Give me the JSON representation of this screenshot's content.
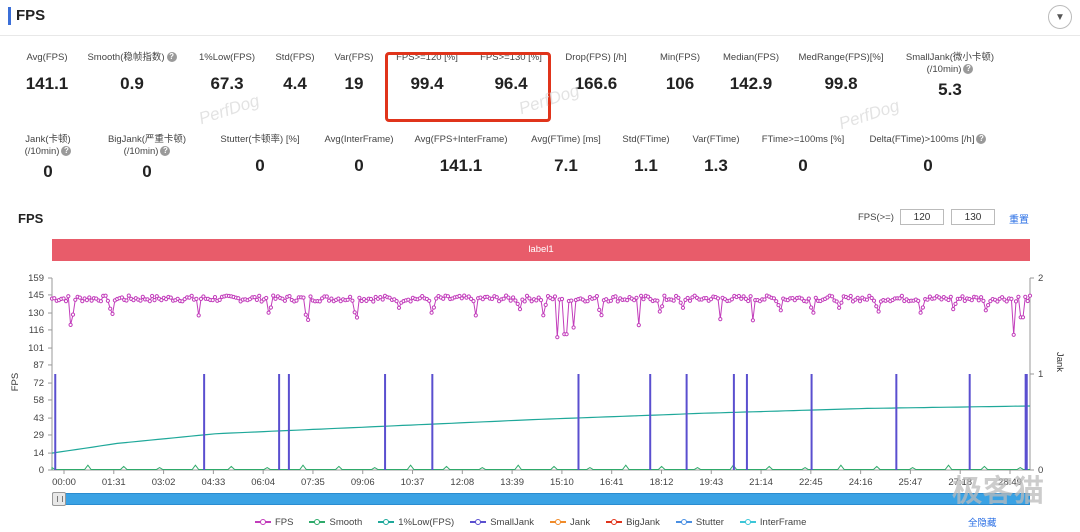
{
  "header": {
    "title": "FPS",
    "collapse_icon": "chevron-down-icon"
  },
  "metrics_row1": [
    {
      "label": "Avg(FPS)",
      "value": "141.1",
      "help": false
    },
    {
      "label": "Smooth(稳帧指数)",
      "value": "0.9",
      "help": true
    },
    {
      "label": "1%Low(FPS)",
      "value": "67.3",
      "help": false
    },
    {
      "label": "Std(FPS)",
      "value": "4.4",
      "help": false
    },
    {
      "label": "Var(FPS)",
      "value": "19",
      "help": false
    },
    {
      "label": "FPS>=120 [%]",
      "value": "99.4",
      "help": false
    },
    {
      "label": "FPS>=130 [%]",
      "value": "96.4",
      "help": false
    },
    {
      "label": "Drop(FPS) [/h]",
      "value": "166.6",
      "help": false
    },
    {
      "label": "Min(FPS)",
      "value": "106",
      "help": false
    },
    {
      "label": "Median(FPS)",
      "value": "142.9",
      "help": false
    },
    {
      "label": "MedRange(FPS)[%]",
      "value": "99.8",
      "help": false
    },
    {
      "label": "SmallJank(微小卡顿)",
      "label2": "(/10min)",
      "value": "5.3",
      "help": true
    }
  ],
  "metrics_row2": [
    {
      "label": "Jank(卡顿)",
      "label2": "(/10min)",
      "value": "0",
      "help": true
    },
    {
      "label": "BigJank(严重卡顿)",
      "label2": "(/10min)",
      "value": "0",
      "help": true
    },
    {
      "label": "Stutter(卡顿率) [%]",
      "value": "0",
      "help": false
    },
    {
      "label": "Avg(InterFrame)",
      "value": "0",
      "help": false
    },
    {
      "label": "Avg(FPS+InterFrame)",
      "value": "141.1",
      "help": false
    },
    {
      "label": "Avg(FTime) [ms]",
      "value": "7.1",
      "help": false
    },
    {
      "label": "Std(FTime)",
      "value": "1.1",
      "help": false
    },
    {
      "label": "Var(FTime)",
      "value": "1.3",
      "help": false
    },
    {
      "label": "FTime>=100ms [%]",
      "value": "0",
      "help": false
    },
    {
      "label": "Delta(FTime)>100ms [/h]",
      "value": "0",
      "help": true
    }
  ],
  "watermark_text": "PerfDog",
  "chart_section": {
    "title": "FPS",
    "fps_threshold_label": "FPS(>=)",
    "threshold1": "120",
    "threshold2": "130",
    "reset_label": "重置",
    "label_bar": "label1"
  },
  "chart_data": {
    "type": "line",
    "x_tick_labels": [
      "00:00",
      "01:31",
      "03:02",
      "04:33",
      "06:04",
      "07:35",
      "09:06",
      "10:37",
      "12:08",
      "13:39",
      "15:10",
      "16:41",
      "18:12",
      "19:43",
      "21:14",
      "22:45",
      "24:16",
      "25:47",
      "27:18",
      "28:49"
    ],
    "x_range_seconds": [
      0,
      1800
    ],
    "ylabel_left": "FPS",
    "ylabel_right": "Jank",
    "y_left_ticks": [
      0,
      14,
      29,
      43,
      58,
      72,
      87,
      101,
      116,
      130,
      145,
      159
    ],
    "y_left_range": [
      0,
      159
    ],
    "y_right_ticks": [
      0,
      1,
      2
    ],
    "y_right_range": [
      0,
      2
    ],
    "fps_base": 142,
    "fps_dips": [
      {
        "t": 35,
        "v": 118
      },
      {
        "t": 110,
        "v": 125
      },
      {
        "t": 270,
        "v": 128
      },
      {
        "t": 400,
        "v": 126
      },
      {
        "t": 470,
        "v": 120
      },
      {
        "t": 560,
        "v": 122
      },
      {
        "t": 640,
        "v": 130
      },
      {
        "t": 700,
        "v": 126
      },
      {
        "t": 780,
        "v": 128
      },
      {
        "t": 860,
        "v": 129
      },
      {
        "t": 905,
        "v": 126
      },
      {
        "t": 930,
        "v": 110
      },
      {
        "t": 945,
        "v": 106
      },
      {
        "t": 960,
        "v": 118
      },
      {
        "t": 1010,
        "v": 124
      },
      {
        "t": 1080,
        "v": 120
      },
      {
        "t": 1120,
        "v": 127
      },
      {
        "t": 1160,
        "v": 130
      },
      {
        "t": 1230,
        "v": 125
      },
      {
        "t": 1290,
        "v": 124
      },
      {
        "t": 1340,
        "v": 128
      },
      {
        "t": 1400,
        "v": 126
      },
      {
        "t": 1450,
        "v": 130
      },
      {
        "t": 1520,
        "v": 127
      },
      {
        "t": 1600,
        "v": 126
      },
      {
        "t": 1660,
        "v": 129
      },
      {
        "t": 1720,
        "v": 128
      },
      {
        "t": 1770,
        "v": 112
      },
      {
        "t": 1785,
        "v": 120
      }
    ],
    "smalljank_times": [
      6,
      280,
      418,
      436,
      613,
      700,
      969,
      1101,
      1168,
      1255,
      1279,
      1398,
      1554,
      1689,
      1792,
      1794
    ],
    "smalljank_value": 1,
    "low1pct_line": [
      {
        "t": 0,
        "v": 14
      },
      {
        "t": 120,
        "v": 22
      },
      {
        "t": 300,
        "v": 30
      },
      {
        "t": 600,
        "v": 36
      },
      {
        "t": 900,
        "v": 42
      },
      {
        "t": 1200,
        "v": 47
      },
      {
        "t": 1500,
        "v": 51
      },
      {
        "t": 1800,
        "v": 53
      }
    ],
    "series": [
      {
        "name": "FPS",
        "color": "#c23dbb"
      },
      {
        "name": "Smooth",
        "color": "#2eaa6a"
      },
      {
        "name": "1%Low(FPS)",
        "color": "#1fa89a"
      },
      {
        "name": "SmallJank",
        "color": "#5a4fcf"
      },
      {
        "name": "Jank",
        "color": "#f08b2a"
      },
      {
        "name": "BigJank",
        "color": "#e0341b"
      },
      {
        "name": "Stutter",
        "color": "#4a8fe2"
      },
      {
        "name": "InterFrame",
        "color": "#3cc6d8"
      }
    ]
  },
  "legend_hide_all": "全隐藏",
  "logo_text": "极客猫"
}
